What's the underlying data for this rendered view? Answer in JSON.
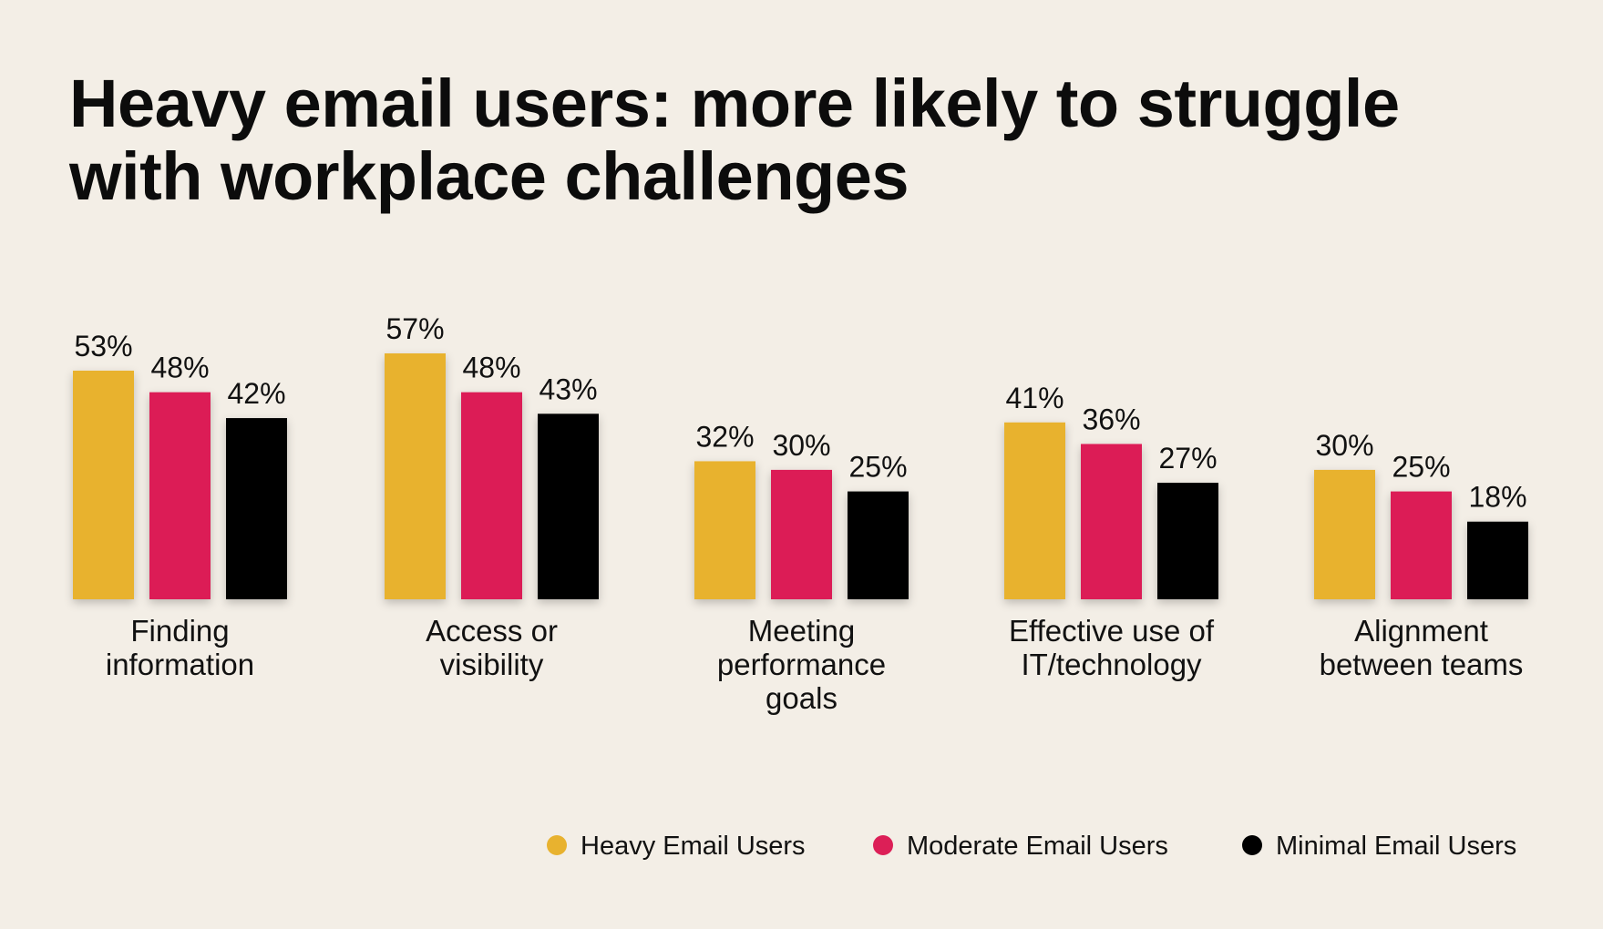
{
  "title_lines": [
    "Heavy email users: more likely to struggle",
    "with workplace challenges"
  ],
  "colors": {
    "background": "#f3eee6",
    "heavy": "#e8b22f",
    "moderate": "#dc1f57",
    "minimal": "#000000",
    "text": "#111111"
  },
  "chart_data": {
    "type": "bar",
    "title": "Heavy email users: more likely to struggle with workplace challenges",
    "xlabel": "",
    "ylabel": "",
    "ylim": [
      0,
      57
    ],
    "grid": false,
    "legend_position": "bottom-right",
    "value_suffix": "%",
    "categories": [
      [
        "Finding",
        "information"
      ],
      [
        "Access or",
        "visibility"
      ],
      [
        "Meeting",
        "performance",
        "goals"
      ],
      [
        "Effective use of",
        "IT/technology"
      ],
      [
        "Alignment",
        "between teams"
      ]
    ],
    "series": [
      {
        "name": "Heavy Email Users",
        "color": "#e8b22f",
        "values": [
          53,
          57,
          32,
          41,
          30
        ]
      },
      {
        "name": "Moderate Email Users",
        "color": "#dc1f57",
        "values": [
          48,
          48,
          30,
          36,
          25
        ]
      },
      {
        "name": "Minimal Email Users",
        "color": "#000000",
        "values": [
          42,
          43,
          25,
          27,
          18
        ]
      }
    ]
  }
}
